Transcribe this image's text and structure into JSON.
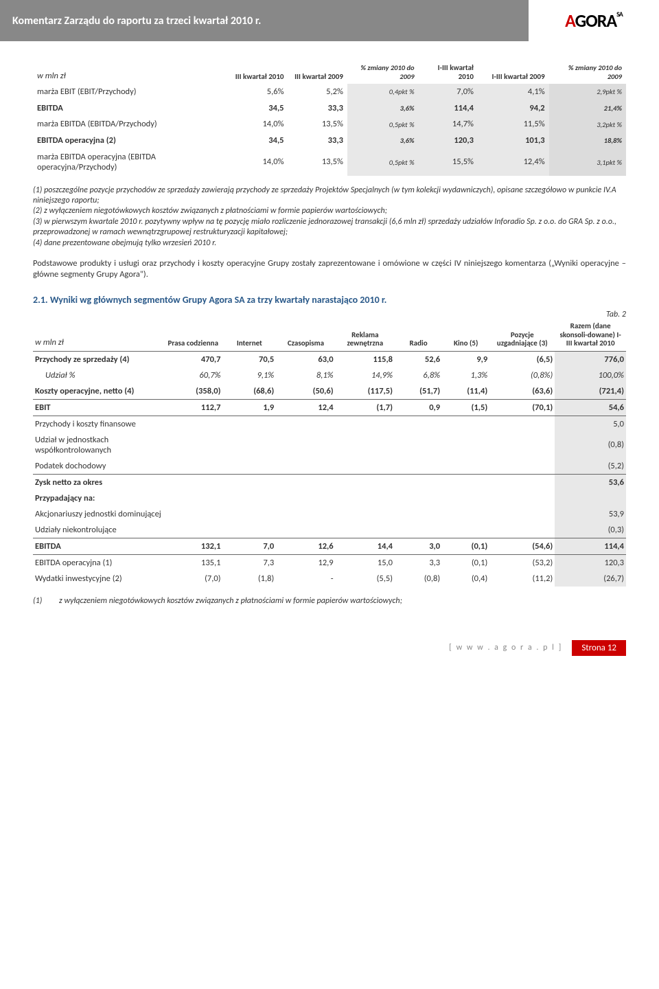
{
  "header": {
    "title": "Komentarz Zarządu do raportu za trzeci kwartał 2010 r.",
    "logo_main": "AGORA",
    "logo_sa": "SA"
  },
  "table1": {
    "headers": {
      "unit": "w mln zł",
      "c1": "III kwartał 2010",
      "c2": "III kwartał 2009",
      "c3": "% zmiany 2010 do 2009",
      "c4": "I-III kwartał 2010",
      "c5": "I-III kwartał 2009",
      "c6": "% zmiany 2010 do 2009"
    },
    "rows": [
      {
        "label": "marża EBIT (EBIT/Przychody)",
        "v": [
          "5,6%",
          "5,2%",
          "0,4pkt %",
          "7,0%",
          "4,1%",
          "2,9pkt %"
        ],
        "bold": false,
        "sml": false
      },
      {
        "label": "EBITDA",
        "v": [
          "34,5",
          "33,3",
          "3,6%",
          "114,4",
          "94,2",
          "21,4%"
        ],
        "bold": true,
        "sml": false
      },
      {
        "label": "marża EBITDA (EBITDA/Przychody)",
        "v": [
          "14,0%",
          "13,5%",
          "0,5pkt %",
          "14,7%",
          "11,5%",
          "3,2pkt %"
        ],
        "bold": false,
        "sml": false
      },
      {
        "label": "EBITDA operacyjna (2)",
        "v": [
          "34,5",
          "33,3",
          "3,6%",
          "120,3",
          "101,3",
          "18,8%"
        ],
        "bold": true,
        "sml": false
      },
      {
        "label": "marża EBITDA operacyjna (EBITDA operacyjna/Przychody)",
        "v": [
          "14,0%",
          "13,5%",
          "0,5pkt %",
          "15,5%",
          "12,4%",
          "3,1pkt %"
        ],
        "bold": false,
        "sml": false
      }
    ]
  },
  "notes1": "(1) poszczególne pozycje przychodów ze sprzedaży zawierają przychody ze sprzedaży Projektów Specjalnych (w tym kolekcji wydawniczych), opisane szczegółowo w punkcie IV.A niniejszego raportu;\n(2) z wyłączeniem niegotówkowych kosztów związanych z płatnościami w formie papierów wartościowych;\n(3) w pierwszym kwartale 2010 r. pozytywny wpływ na tę pozycję miało rozliczenie jednorazowej transakcji (6,6 mln zł) sprzedaży udziałów Inforadio Sp. z o.o. do GRA Sp. z o.o., przeprowadzonej w ramach wewnątrzgrupowej restrukturyzacji kapitałowej;\n(4) dane prezentowane obejmują tylko wrzesień 2010 r.",
  "para1": "Podstawowe produkty i usługi oraz przychody i koszty operacyjne Grupy zostały zaprezentowane i omówione w części IV niniejszego komentarza („Wyniki operacyjne – główne segmenty Grupy Agora\").",
  "section_title": "2.1. Wyniki wg głównych segmentów Grupy Agora SA za trzy kwartały narastająco 2010 r.",
  "tab_label": "Tab. 2",
  "table2": {
    "headers": {
      "unit": "w mln zł",
      "c1": "Prasa codzienna",
      "c2": "Internet",
      "c3": "Czasopisma",
      "c4": "Reklama zewnętrzna",
      "c5": "Radio",
      "c6": "Kino (5)",
      "c7": "Pozycje uzgadniające (3)",
      "c8": "Razem (dane skonsoli-dowane) I-III kwartał 2010"
    },
    "rows": [
      {
        "label": "Przychody ze sprzedaży (4)",
        "v": [
          "470,7",
          "70,5",
          "63,0",
          "115,8",
          "52,6",
          "9,9",
          "(6,5)",
          "776,0"
        ],
        "bold": true,
        "italic": false,
        "indent": false,
        "topline": true
      },
      {
        "label": "Udział %",
        "v": [
          "60,7%",
          "9,1%",
          "8,1%",
          "14,9%",
          "6,8%",
          "1,3%",
          "(0,8%)",
          "100,0%"
        ],
        "bold": false,
        "italic": true,
        "indent": true,
        "topline": false
      },
      {
        "label": "Koszty operacyjne, netto (4)",
        "v": [
          "(358,0)",
          "(68,6)",
          "(50,6)",
          "(117,5)",
          "(51,7)",
          "(11,4)",
          "(63,6)",
          "(721,4)"
        ],
        "bold": true,
        "italic": false,
        "indent": false,
        "topline": false
      },
      {
        "label": "EBIT",
        "v": [
          "112,7",
          "1,9",
          "12,4",
          "(1,7)",
          "0,9",
          "(1,5)",
          "(70,1)",
          "54,6"
        ],
        "bold": true,
        "italic": false,
        "indent": false,
        "topline": true,
        "botline": true
      },
      {
        "label": "Przychody i koszty finansowe",
        "v": [
          "",
          "",
          "",
          "",
          "",
          "",
          "",
          "5,0"
        ],
        "bold": false,
        "italic": false,
        "indent": false,
        "topline": false
      },
      {
        "label": "Udział w jednostkach współkontrolowanych",
        "v": [
          "",
          "",
          "",
          "",
          "",
          "",
          "",
          "(0,8)"
        ],
        "bold": false,
        "italic": false,
        "indent": false,
        "topline": false
      },
      {
        "label": "Podatek dochodowy",
        "v": [
          "",
          "",
          "",
          "",
          "",
          "",
          "",
          "(5,2)"
        ],
        "bold": false,
        "italic": false,
        "indent": false,
        "topline": false
      },
      {
        "label": "Zysk netto za okres",
        "v": [
          "",
          "",
          "",
          "",
          "",
          "",
          "",
          "53,6"
        ],
        "bold": true,
        "italic": false,
        "indent": false,
        "topline": true
      },
      {
        "label": "Przypadający na:",
        "v": [
          "",
          "",
          "",
          "",
          "",
          "",
          "",
          ""
        ],
        "bold": true,
        "italic": false,
        "indent": false,
        "topline": false
      },
      {
        "label": "Akcjonariuszy jednostki dominującej",
        "v": [
          "",
          "",
          "",
          "",
          "",
          "",
          "",
          "53,9"
        ],
        "bold": false,
        "italic": false,
        "indent": false,
        "topline": false
      },
      {
        "label": "Udziały niekontrolujące",
        "v": [
          "",
          "",
          "",
          "",
          "",
          "",
          "",
          "(0,3)"
        ],
        "bold": false,
        "italic": false,
        "indent": false,
        "topline": false
      },
      {
        "label": "EBITDA",
        "v": [
          "132,1",
          "7,0",
          "12,6",
          "14,4",
          "3,0",
          "(0,1)",
          "(54,6)",
          "114,4"
        ],
        "bold": true,
        "italic": false,
        "indent": false,
        "topline": true,
        "botline": true
      },
      {
        "label": "EBITDA operacyjna (1)",
        "v": [
          "135,1",
          "7,3",
          "12,9",
          "15,0",
          "3,3",
          "(0,1)",
          "(53,2)",
          "120,3"
        ],
        "bold": false,
        "italic": false,
        "indent": false,
        "topline": false
      },
      {
        "label": "Wydatki inwestycyjne (2)",
        "v": [
          "(7,0)",
          "(1,8)",
          "-",
          "(5,5)",
          "(0,8)",
          "(0,4)",
          "(11,2)",
          "(26,7)"
        ],
        "bold": false,
        "italic": false,
        "indent": false,
        "topline": false
      }
    ]
  },
  "footnote2_num": "(1)",
  "footnote2": "z wyłączeniem niegotówkowych kosztów związanych z płatnościami w formie papierów wartościowych;",
  "footer": {
    "url": "[ w w w . a g o r a . p l ]",
    "page": "Strona 12"
  }
}
